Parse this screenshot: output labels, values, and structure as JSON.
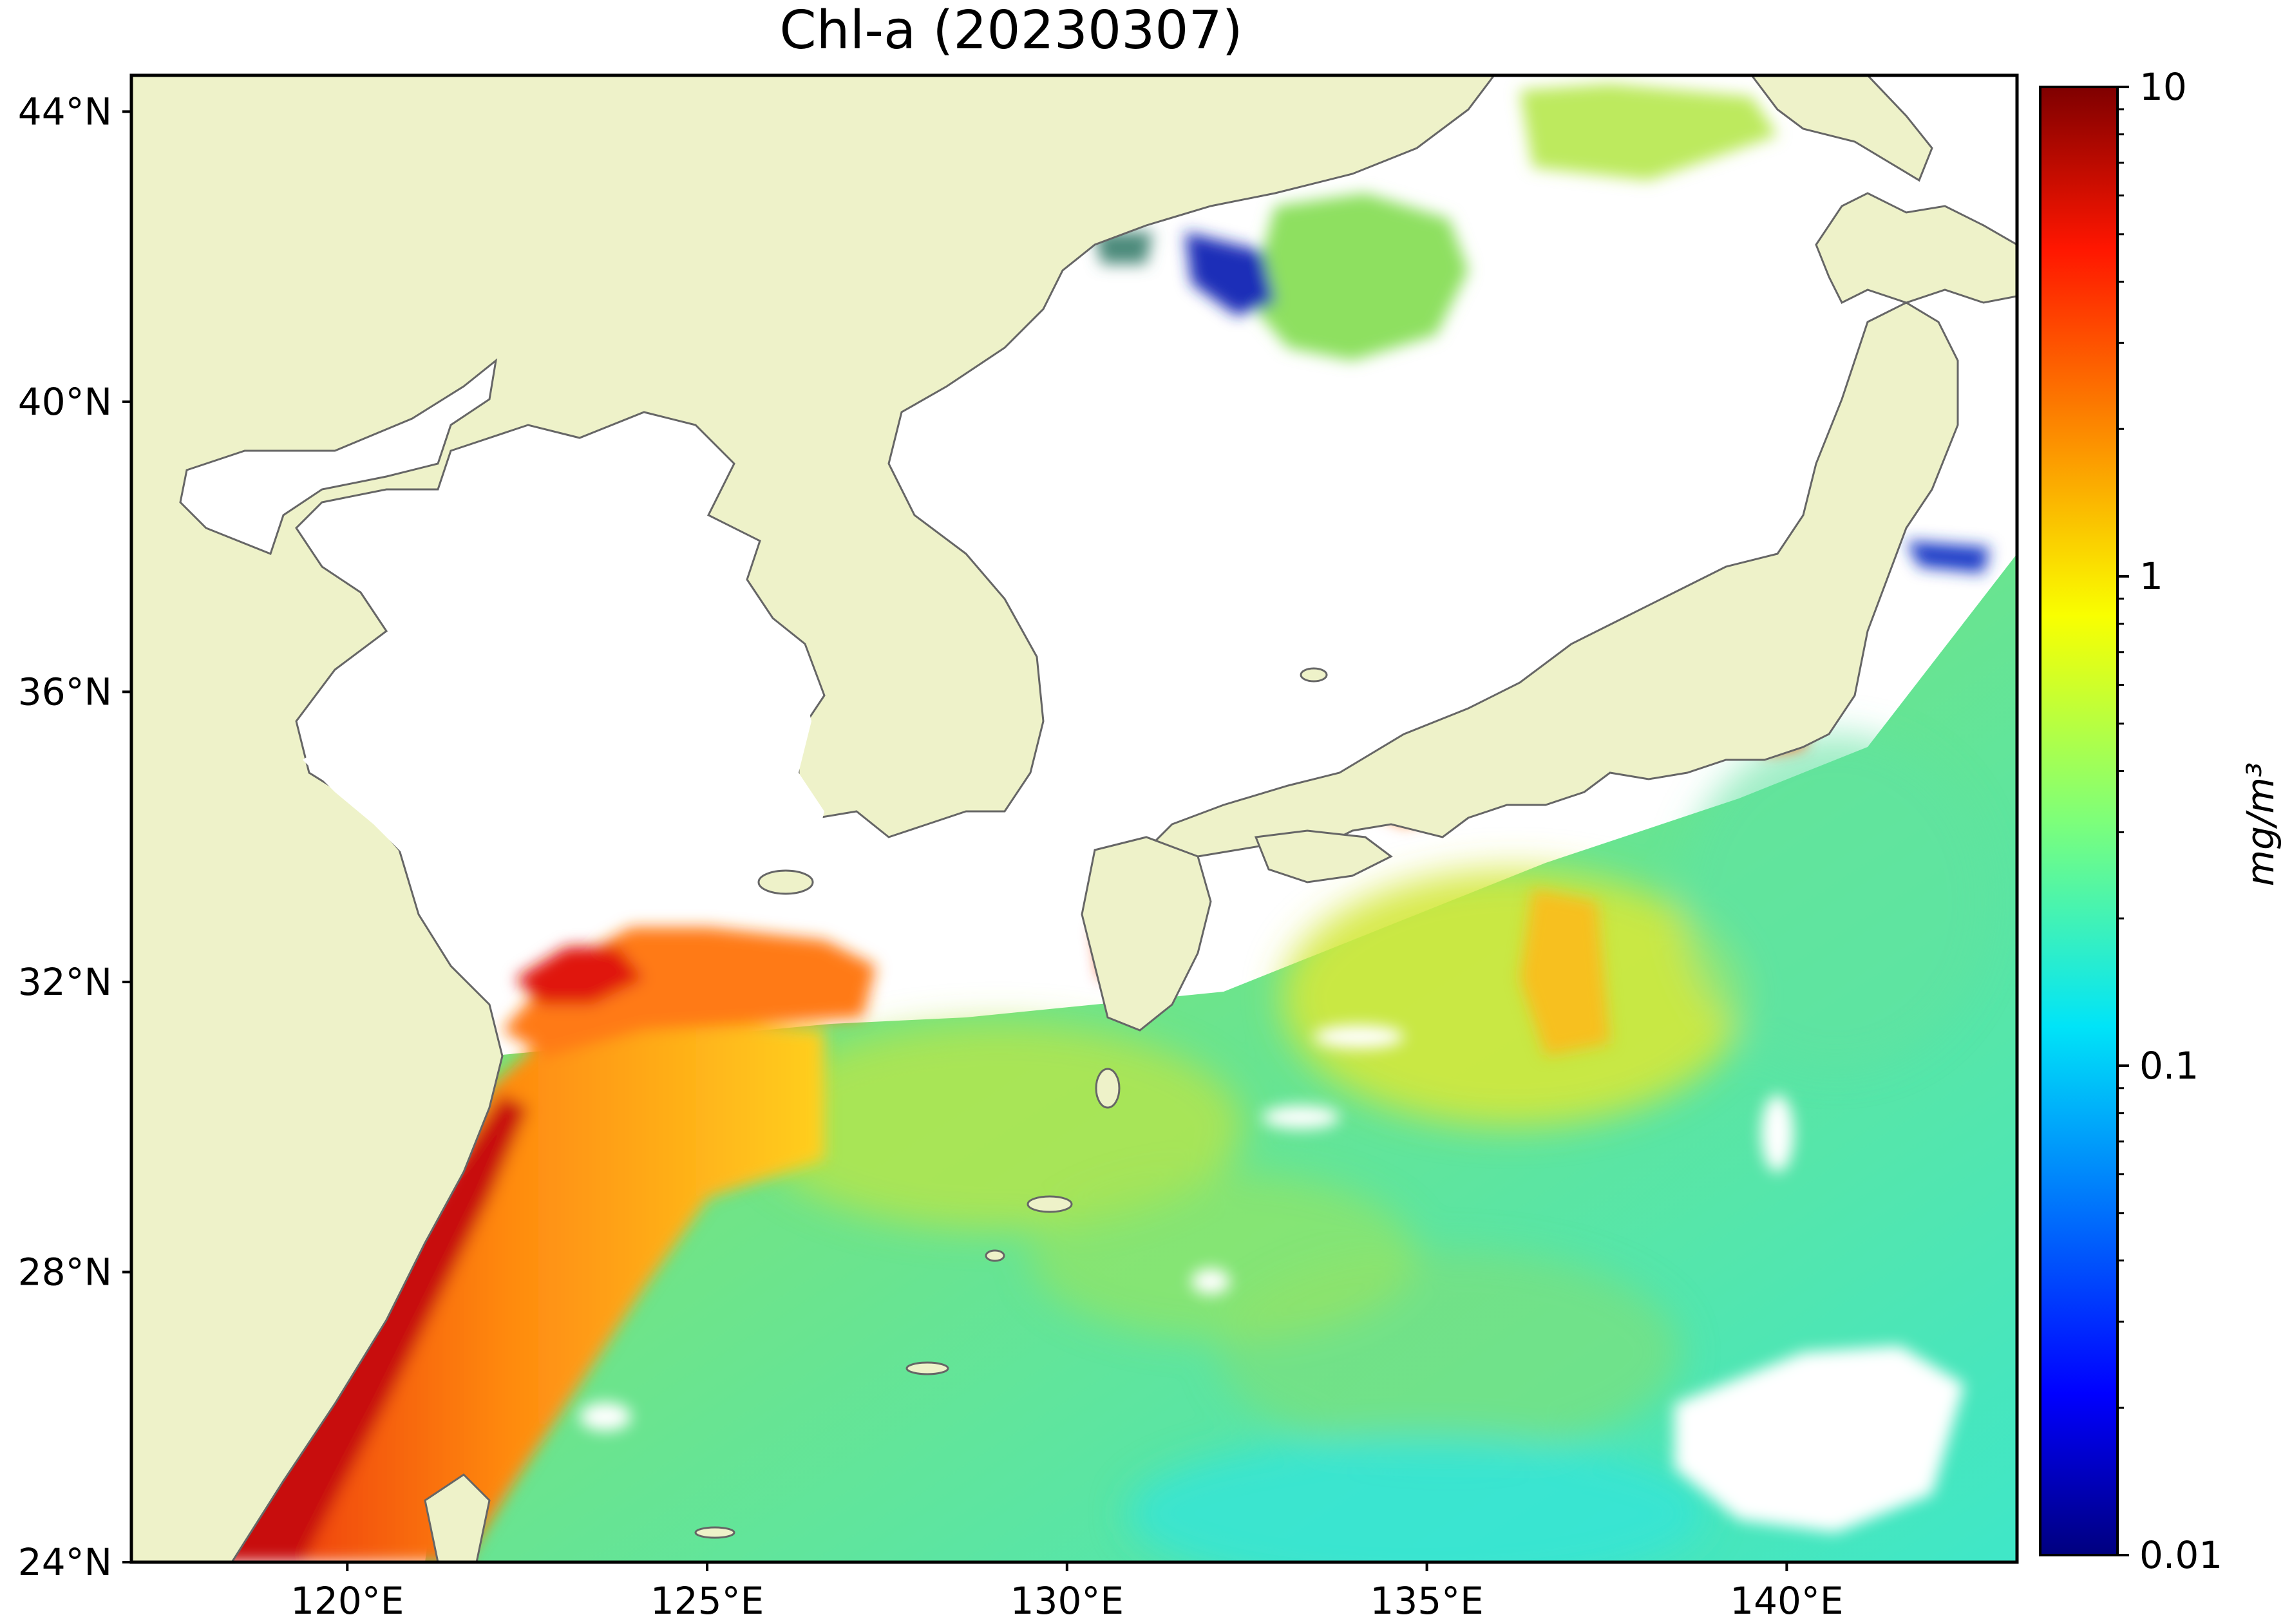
{
  "title": "Chl-a (20230307)",
  "map": {
    "land_color": "#eef2c9",
    "coastline_color": "#666666",
    "no_data_color": "#ffffff",
    "lon_range": [
      117,
      143.2
    ],
    "lat_range": [
      24,
      44.5
    ],
    "lat_ticks": [
      {
        "value": 44,
        "label": "44°N"
      },
      {
        "value": 40,
        "label": "40°N"
      },
      {
        "value": 36,
        "label": "36°N"
      },
      {
        "value": 32,
        "label": "32°N"
      },
      {
        "value": 28,
        "label": "28°N"
      },
      {
        "value": 24,
        "label": "24°N"
      }
    ],
    "lon_ticks": [
      {
        "value": 120,
        "label": "120°E"
      },
      {
        "value": 125,
        "label": "125°E"
      },
      {
        "value": 130,
        "label": "130°E"
      },
      {
        "value": 135,
        "label": "135°E"
      },
      {
        "value": 140,
        "label": "140°E"
      }
    ]
  },
  "colorbar": {
    "unit": "mg/m³",
    "scale": "log",
    "range": [
      0.01,
      10
    ],
    "colormap": "jet",
    "ticks": [
      {
        "value": 10,
        "label": "10"
      },
      {
        "value": 1,
        "label": "1"
      },
      {
        "value": 0.1,
        "label": "0.1"
      },
      {
        "value": 0.01,
        "label": "0.01"
      }
    ]
  }
}
